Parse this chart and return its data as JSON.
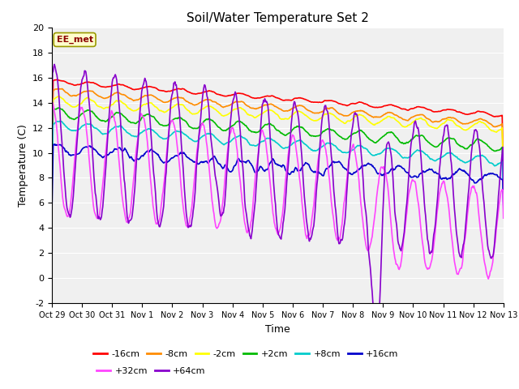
{
  "title": "Soil/Water Temperature Set 2",
  "xlabel": "Time",
  "ylabel": "Temperature (C)",
  "ylim": [
    -2,
    20
  ],
  "fig_facecolor": "#ffffff",
  "plot_facecolor": "#f0f0f0",
  "annotation_text": "EE_met",
  "annotation_bg": "#ffffcc",
  "annotation_border": "#999900",
  "xtick_labels": [
    "Oct 29",
    "Oct 30",
    "Oct 31",
    "Nov 1",
    "Nov 2",
    "Nov 3",
    "Nov 4",
    "Nov 5",
    "Nov 6",
    "Nov 7",
    "Nov 8",
    "Nov 9",
    "Nov 10",
    "Nov 11",
    "Nov 12",
    "Nov 13"
  ],
  "series": [
    {
      "label": "-16cm",
      "color": "#ff0000"
    },
    {
      "label": "-8cm",
      "color": "#ff8c00"
    },
    {
      "label": "-2cm",
      "color": "#ffff00"
    },
    {
      "label": "+2cm",
      "color": "#00bb00"
    },
    {
      "label": "+8cm",
      "color": "#00cccc"
    },
    {
      "label": "+16cm",
      "color": "#0000cc"
    },
    {
      "label": "+32cm",
      "color": "#ff44ff"
    },
    {
      "label": "+64cm",
      "color": "#8800cc"
    }
  ],
  "n_days": 15,
  "points_per_day": 48,
  "grid_color": "#ffffff",
  "title_fontsize": 11,
  "tick_fontsize": 7,
  "label_fontsize": 9,
  "legend_fontsize": 8
}
